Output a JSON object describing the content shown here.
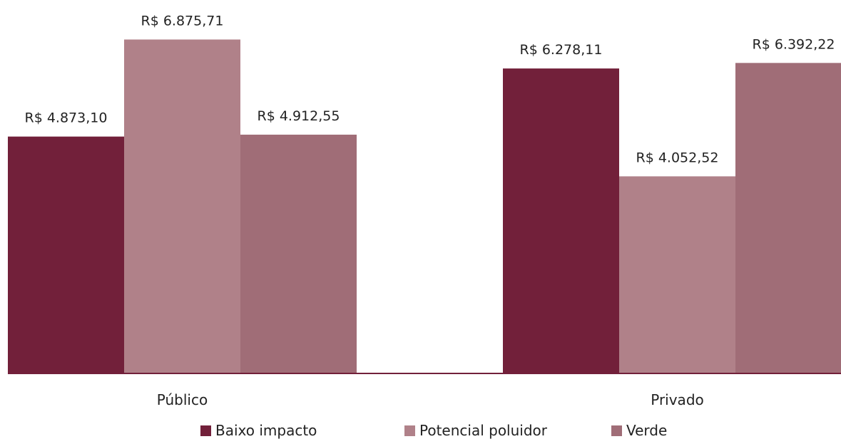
{
  "chart_data": {
    "type": "bar",
    "title": "",
    "xlabel": "",
    "ylabel": "",
    "categories": [
      "Público",
      "Privado"
    ],
    "series": [
      {
        "name": "Baixo impacto",
        "color": "#72203a",
        "values": [
          4873.1,
          6278.11
        ],
        "labels": [
          "R$ 4.873,10",
          "R$ 6.278,11"
        ]
      },
      {
        "name": "Potencial poluidor",
        "color": "#b08189",
        "values": [
          6875.71,
          4052.52
        ],
        "labels": [
          "R$ 6.875,71",
          "R$ 4.052,52"
        ]
      },
      {
        "name": "Verde",
        "color": "#a06d77",
        "values": [
          4912.55,
          6392.22
        ],
        "labels": [
          "R$ 4.912,55",
          "R$ 6.392,22"
        ]
      }
    ],
    "ylim": [
      0,
      7500
    ],
    "grid": false,
    "legend_position": "bottom",
    "axis_color": "#72203a"
  }
}
